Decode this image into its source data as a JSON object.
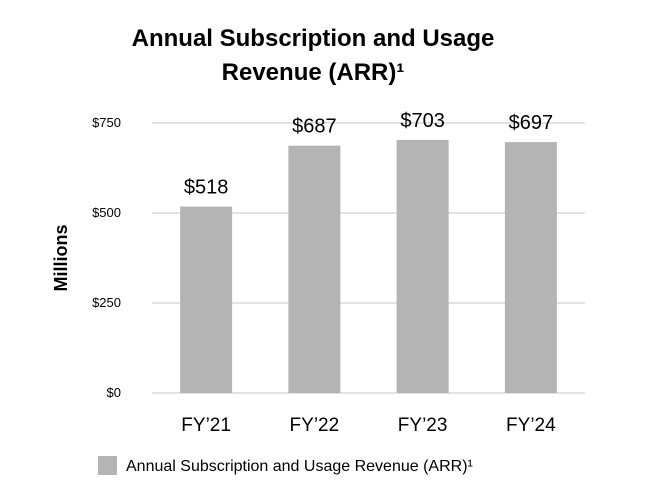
{
  "chart_data": {
    "type": "bar",
    "title_lines": [
      "Annual Subscription and Usage",
      "Revenue (ARR)¹"
    ],
    "ylabel": "Millions",
    "xlabel": "",
    "categories": [
      "FY’21",
      "FY’22",
      "FY’23",
      "FY’24"
    ],
    "series": [
      {
        "name": "Annual Subscription and Usage Revenue (ARR)¹",
        "values": [
          518,
          687,
          703,
          697
        ],
        "data_labels": [
          "$518",
          "$687",
          "$703",
          "$697"
        ]
      }
    ],
    "ylim": [
      0,
      750
    ],
    "yticks": [
      0,
      250,
      500,
      750
    ],
    "ytick_labels": [
      "$0",
      "$250",
      "$500",
      "$750"
    ],
    "grid": true,
    "legend_position": "bottom",
    "colors": {
      "bar": "#b4b4b4",
      "grid": "#d9d9d9"
    }
  }
}
